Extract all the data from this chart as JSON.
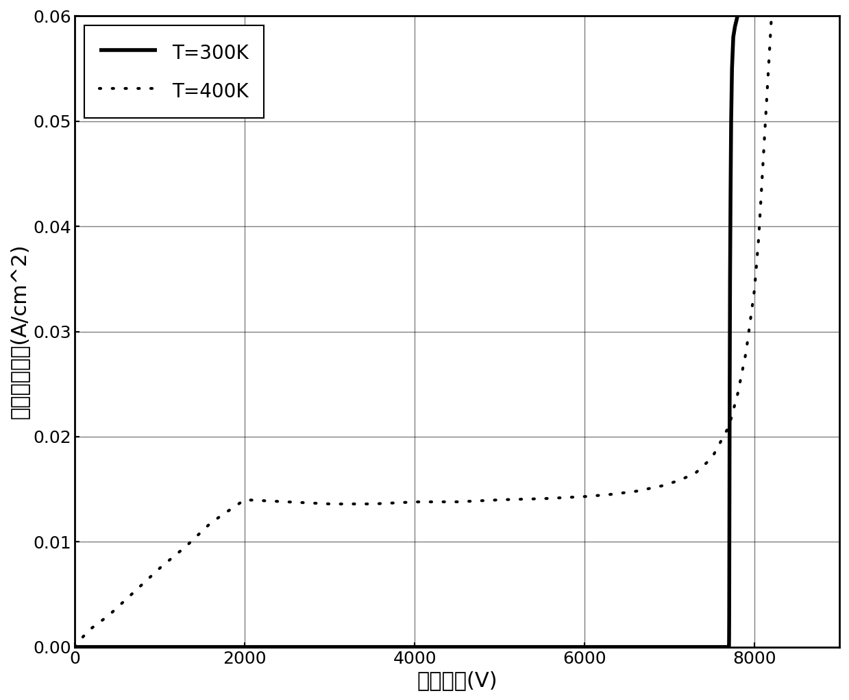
{
  "xlabel": "阳极电压(V)",
  "ylabel": "阳极电流密度(A/cm^2)",
  "xlim": [
    0,
    9000
  ],
  "ylim": [
    0,
    0.06
  ],
  "xticks": [
    0,
    2000,
    4000,
    6000,
    8000
  ],
  "yticks": [
    0.0,
    0.01,
    0.02,
    0.03,
    0.04,
    0.05,
    0.06
  ],
  "legend_300K": "T=300K",
  "legend_400K": "T=400K",
  "line_color": "#000000",
  "background_color": "#ffffff",
  "figsize": [
    12.39,
    10.21
  ],
  "dpi": 100,
  "breakover_300K": 7700,
  "breakover_400K": 8050,
  "curve400K_x": [
    0,
    100,
    200,
    400,
    600,
    800,
    1000,
    1300,
    1600,
    2000,
    2500,
    3000,
    3500,
    4000,
    4500,
    5000,
    5500,
    6000,
    6300,
    6600,
    6900,
    7100,
    7300,
    7500,
    7600,
    7700,
    7800,
    7900,
    8000,
    8050,
    8100,
    8150,
    8200
  ],
  "curve400K_y": [
    0.0,
    0.001,
    0.0018,
    0.003,
    0.0045,
    0.006,
    0.0075,
    0.0095,
    0.0118,
    0.014,
    0.0138,
    0.0136,
    0.0136,
    0.0138,
    0.0138,
    0.014,
    0.0141,
    0.0143,
    0.0145,
    0.0148,
    0.0153,
    0.0158,
    0.0165,
    0.018,
    0.0195,
    0.021,
    0.024,
    0.028,
    0.034,
    0.039,
    0.046,
    0.053,
    0.06
  ]
}
